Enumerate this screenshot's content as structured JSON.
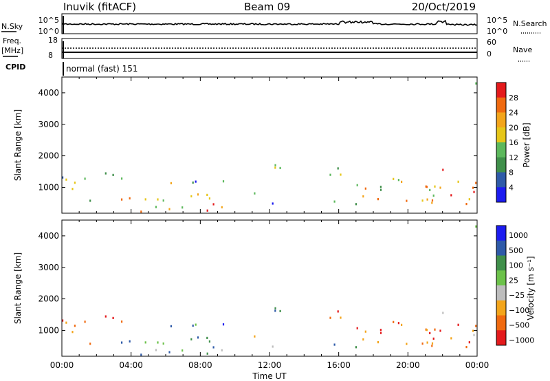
{
  "header": {
    "station": "Inuvik (fitACF)",
    "beam": "Beam 09",
    "date": "20/Oct/2019"
  },
  "noise_panel": {
    "left_label": "N.Sky",
    "right_label": "N.Search",
    "left_ticks": [
      "10^5",
      "10^0"
    ],
    "right_ticks": [
      "10^5",
      "10^0"
    ]
  },
  "freq_panel": {
    "left_label": "Freq.",
    "left_unit": "[MHz]",
    "left_ticks": [
      "18",
      "8"
    ],
    "right_label": "Nave",
    "right_ticks": [
      "60",
      "0"
    ]
  },
  "cpid_panel": {
    "label": "CPID",
    "program": "normal (fast) 151"
  },
  "colors": {
    "power_scale": [
      "#1c1cf0",
      "#2e5aa8",
      "#3f8f4a",
      "#5cb85c",
      "#e6c619",
      "#f3a51b",
      "#f06a10",
      "#e41a1c"
    ],
    "velocity_scale": [
      "#e41a1c",
      "#f06a10",
      "#f3a51b",
      "#bdbdbd",
      "#6cc24a",
      "#3f8f4a",
      "#2e5aa8",
      "#1c1cf0"
    ]
  },
  "chart_data": [
    {
      "type": "heatmap",
      "name": "power",
      "ylabel": "Slant Range [km]",
      "yticks": [
        1000,
        2000,
        3000,
        4000
      ],
      "ylim": [
        180,
        4500
      ],
      "xticks": [
        "00:00",
        "04:00",
        "08:00",
        "12:00",
        "16:00",
        "20:00",
        "00:00"
      ],
      "xlim_hours": [
        0,
        24
      ],
      "colorbar_label": "Power [dB]",
      "colorbar_ticks": [
        "4",
        "8",
        "12",
        "16",
        "20",
        "24",
        "28"
      ],
      "colorbar_range": [
        0,
        32
      ]
    },
    {
      "type": "heatmap",
      "name": "velocity",
      "ylabel": "Slant Range [km]",
      "yticks": [
        1000,
        2000,
        3000,
        4000
      ],
      "ylim": [
        180,
        4500
      ],
      "xticks": [
        "00:00",
        "04:00",
        "08:00",
        "12:00",
        "16:00",
        "20:00",
        "00:00"
      ],
      "xlim_hours": [
        0,
        24
      ],
      "xlabel": "Time UT",
      "colorbar_label": "Velocity [m s⁻¹]",
      "colorbar_ticks": [
        "1000",
        "500",
        "100",
        "25",
        "−25",
        "−100",
        "−500",
        "−1000"
      ]
    }
  ]
}
